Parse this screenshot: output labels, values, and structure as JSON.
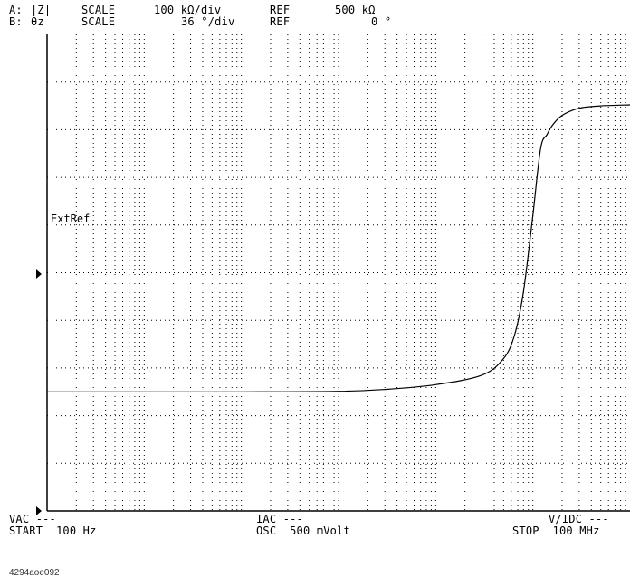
{
  "header": {
    "trace_a": {
      "channel": "A:",
      "param": "|Z|",
      "scale_label": "SCALE",
      "scale_value": "100 kΩ/div",
      "ref_label": "REF",
      "ref_value": "500 kΩ"
    },
    "trace_b": {
      "channel": "B:",
      "param": "θz",
      "scale_label": "SCALE",
      "scale_value": "36 °/div",
      "ref_label": "REF",
      "ref_value": "0 °"
    }
  },
  "marker_text": "ExtRef",
  "footer": {
    "vac": "VAC ---",
    "start": "START  100 Hz",
    "iac": "IAC ---",
    "osc": "OSC  500 mVolt",
    "vidc": "V/IDC ---",
    "stop": "STOP  100 MHz"
  },
  "caption": "4294aoe092",
  "chart_data": {
    "type": "line",
    "title": "",
    "xlabel": "",
    "ylabel": "",
    "x_scale": "log",
    "xlim": [
      100,
      100000000
    ],
    "ylim_divisions": [
      0,
      10
    ],
    "grid": true,
    "series": [
      {
        "x": [
          100,
          1000,
          10000,
          100000,
          300000,
          1000000,
          3000000,
          5000000,
          6500000,
          8000000,
          10000000,
          12000000,
          14000000,
          16000000,
          20000000,
          30000000,
          50000000,
          100000000
        ],
        "y_div": [
          2.5,
          2.5,
          2.5,
          2.51,
          2.55,
          2.65,
          2.85,
          3.2,
          3.7,
          4.6,
          6.2,
          7.6,
          7.9,
          8.1,
          8.3,
          8.45,
          8.5,
          8.52
        ]
      }
    ]
  }
}
